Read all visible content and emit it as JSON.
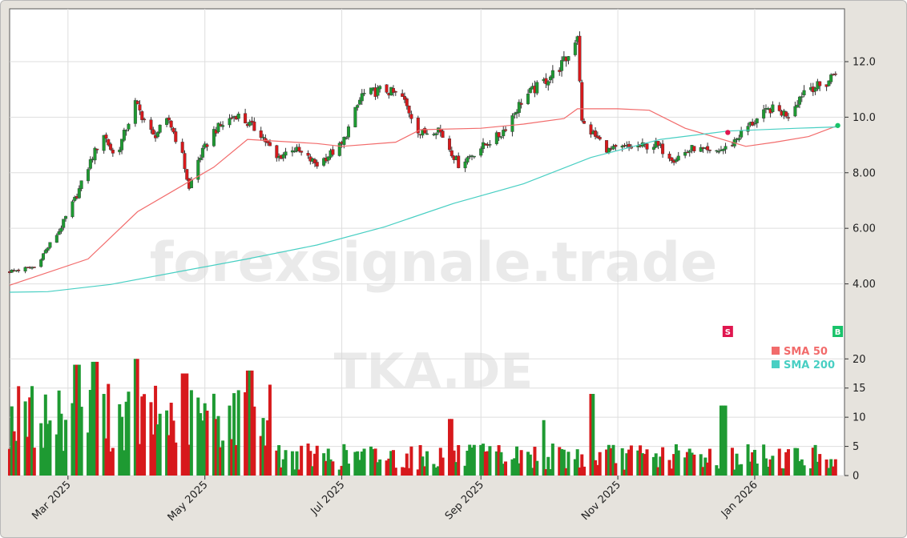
{
  "colors": {
    "background": "#e6e3dd",
    "plot_background": "#ffffff",
    "up": "#1e9a32",
    "down": "#d7191c",
    "sma50": "#f26b6b",
    "sma200": "#48cfc3",
    "grid": "#dedede",
    "sell": "#e0164f",
    "buy": "#19c36a"
  },
  "watermark": {
    "site": "forexsignale.trade",
    "ticker": "TKA.DE"
  },
  "chart_data": {
    "type": "candlestick",
    "ticker": "TKA.DE",
    "x_tick_labels": [
      "Mar 2025",
      "May 2025",
      "Jul 2025",
      "Sep 2025",
      "Nov 2025",
      "Jan 2026"
    ],
    "x_ticks": [
      "2025-03-01",
      "2025-05-01",
      "2025-07-01",
      "2025-09-01",
      "2025-11-01",
      "2026-01-01"
    ],
    "x_range": [
      "2025-02-03",
      "2026-02-10"
    ],
    "price_axis": {
      "ticks": [
        4,
        6,
        8,
        10,
        12
      ],
      "tick_labels": [
        "4.00",
        "6.00",
        "8.00",
        "10.0",
        "12.0"
      ],
      "ylim": [
        2.0,
        13.9
      ]
    },
    "volume_axis": {
      "ticks": [
        0,
        5,
        10,
        15,
        20
      ],
      "tick_labels": [
        "0",
        "5",
        "10",
        "15",
        "20"
      ],
      "ylim": [
        0,
        21
      ]
    },
    "grid": true,
    "close_path": [
      [
        "2025-02-03",
        4.45
      ],
      [
        "2025-02-14",
        4.6
      ],
      [
        "2025-02-25",
        5.9
      ],
      [
        "2025-03-05",
        7.2
      ],
      [
        "2025-03-12",
        8.6
      ],
      [
        "2025-03-17",
        9.4
      ],
      [
        "2025-03-22",
        8.5
      ],
      [
        "2025-03-31",
        10.5
      ],
      [
        "2025-04-08",
        9.3
      ],
      [
        "2025-04-15",
        9.9
      ],
      [
        "2025-04-21",
        8.6
      ],
      [
        "2025-04-24",
        7.4
      ],
      [
        "2025-04-27",
        8.3
      ],
      [
        "2025-05-05",
        9.5
      ],
      [
        "2025-05-15",
        10.1
      ],
      [
        "2025-05-26",
        9.4
      ],
      [
        "2025-06-02",
        8.5
      ],
      [
        "2025-06-09",
        8.9
      ],
      [
        "2025-06-20",
        8.3
      ],
      [
        "2025-07-01",
        9.0
      ],
      [
        "2025-07-10",
        10.8
      ],
      [
        "2025-07-20",
        11.0
      ],
      [
        "2025-07-28",
        10.7
      ],
      [
        "2025-08-05",
        9.4
      ],
      [
        "2025-08-13",
        9.6
      ],
      [
        "2025-08-22",
        8.3
      ],
      [
        "2025-09-01",
        8.9
      ],
      [
        "2025-09-10",
        9.4
      ],
      [
        "2025-09-20",
        10.7
      ],
      [
        "2025-09-28",
        11.2
      ],
      [
        "2025-10-05",
        11.7
      ],
      [
        "2025-10-10",
        12.2
      ],
      [
        "2025-10-14",
        13.0
      ],
      [
        "2025-10-16",
        9.8
      ],
      [
        "2025-10-28",
        8.8
      ],
      [
        "2025-11-05",
        8.9
      ],
      [
        "2025-11-18",
        9.0
      ],
      [
        "2025-11-26",
        8.5
      ],
      [
        "2025-12-05",
        8.9
      ],
      [
        "2025-12-12",
        8.7
      ],
      [
        "2025-12-20",
        8.9
      ],
      [
        "2025-12-28",
        9.6
      ],
      [
        "2026-01-08",
        10.3
      ],
      [
        "2026-01-16",
        10.1
      ],
      [
        "2026-01-24",
        11.1
      ],
      [
        "2026-02-01",
        11.1
      ],
      [
        "2026-02-07",
        11.8
      ]
    ],
    "sma50": [
      [
        "2025-02-03",
        3.95
      ],
      [
        "2025-03-10",
        4.9
      ],
      [
        "2025-04-01",
        6.6
      ],
      [
        "2025-05-05",
        8.2
      ],
      [
        "2025-05-20",
        9.2
      ],
      [
        "2025-06-20",
        9.05
      ],
      [
        "2025-07-01",
        8.95
      ],
      [
        "2025-07-25",
        9.1
      ],
      [
        "2025-08-05",
        9.55
      ],
      [
        "2025-09-01",
        9.6
      ],
      [
        "2025-09-20",
        9.75
      ],
      [
        "2025-10-08",
        9.95
      ],
      [
        "2025-10-14",
        10.3
      ],
      [
        "2025-11-01",
        10.3
      ],
      [
        "2025-11-15",
        10.25
      ],
      [
        "2025-12-01",
        9.6
      ],
      [
        "2025-12-28",
        8.95
      ],
      [
        "2026-01-10",
        9.1
      ],
      [
        "2026-01-25",
        9.3
      ],
      [
        "2026-02-07",
        9.7
      ]
    ],
    "sma200": [
      [
        "2025-02-03",
        3.7
      ],
      [
        "2025-02-20",
        3.72
      ],
      [
        "2025-03-20",
        3.98
      ],
      [
        "2025-04-20",
        4.45
      ],
      [
        "2025-05-20",
        4.9
      ],
      [
        "2025-06-20",
        5.4
      ],
      [
        "2025-07-20",
        6.05
      ],
      [
        "2025-08-20",
        6.9
      ],
      [
        "2025-09-20",
        7.6
      ],
      [
        "2025-10-20",
        8.55
      ],
      [
        "2025-11-20",
        9.2
      ],
      [
        "2025-12-20",
        9.5
      ],
      [
        "2026-01-20",
        9.6
      ],
      [
        "2026-02-07",
        9.65
      ]
    ],
    "signals": [
      {
        "label": "S",
        "date": "2025-12-20",
        "price": 9.45,
        "type": "sell"
      },
      {
        "label": "B",
        "date": "2026-02-07",
        "price": 9.7,
        "type": "buy"
      }
    ],
    "legend": [
      {
        "name": "SMA 50",
        "color": "#f26b6b"
      },
      {
        "name": "SMA 200",
        "color": "#48cfc3"
      }
    ],
    "volume_peaks": [
      [
        "2025-03-05",
        19
      ],
      [
        "2025-03-13",
        19.5
      ],
      [
        "2025-03-31",
        20
      ],
      [
        "2025-04-22",
        17.5
      ],
      [
        "2025-05-21",
        18
      ],
      [
        "2025-08-18",
        9.7
      ],
      [
        "2025-09-28",
        9.5
      ],
      [
        "2025-10-20",
        14
      ],
      [
        "2025-12-18",
        12
      ]
    ]
  }
}
